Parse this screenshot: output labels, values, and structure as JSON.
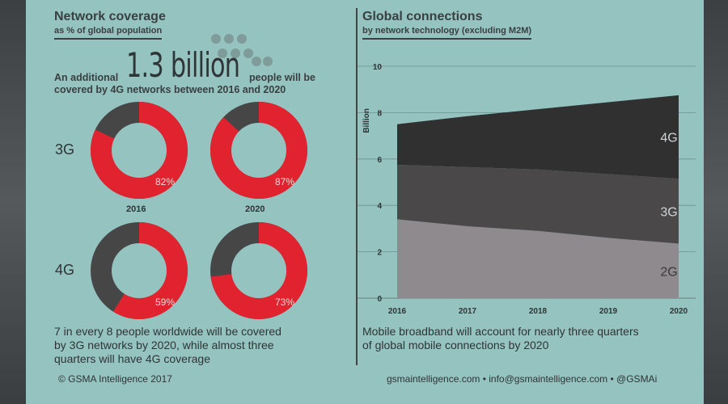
{
  "left": {
    "title": "Network coverage",
    "subtitle": "as % of global population",
    "intro_prefix": "An additional",
    "intro_number": "1.3 billion",
    "intro_suffix": "people will be",
    "intro_line2": "covered by 4G networks between 2016 and 2020",
    "rows": [
      "3G",
      "4G"
    ],
    "years": [
      "2016",
      "2020"
    ],
    "note_line1": "7 in every 8 people worldwide will be covered",
    "note_line2": "by 3G networks by 2020, while almost three",
    "note_line3": "quarters will have 4G coverage",
    "footer": "© GSMA Intelligence 2017"
  },
  "right": {
    "title": "Global connections",
    "subtitle": "by network technology (excluding M2M)",
    "note_line1": "Mobile broadband will account for nearly three quarters",
    "note_line2": "of global mobile connections by 2020",
    "footer": "gsmaintelligence.com • info@gsmaintelligence.com • @GSMAi"
  },
  "colors": {
    "panel": "#94c3c0",
    "red": "#e0232f",
    "dark": "#464647",
    "area_4g": "#303030",
    "area_3g": "#4a4849",
    "area_2g": "#8f8a8d"
  },
  "chart_data": [
    {
      "type": "pie",
      "title": "3G 2016",
      "categories": [
        "covered",
        "not covered"
      ],
      "values": [
        82,
        18
      ],
      "label": "82%"
    },
    {
      "type": "pie",
      "title": "3G 2020",
      "categories": [
        "covered",
        "not covered"
      ],
      "values": [
        87,
        13
      ],
      "label": "87%"
    },
    {
      "type": "pie",
      "title": "4G 2016",
      "categories": [
        "covered",
        "not covered"
      ],
      "values": [
        59,
        41
      ],
      "label": "59%"
    },
    {
      "type": "pie",
      "title": "4G 2020",
      "categories": [
        "covered",
        "not covered"
      ],
      "values": [
        73,
        27
      ],
      "label": "73%"
    },
    {
      "type": "area",
      "title": "Global connections",
      "ylabel": "Billion",
      "x": [
        "2016",
        "2017",
        "2018",
        "2019",
        "2020"
      ],
      "ylim": [
        0,
        10
      ],
      "yticks": [
        0,
        2,
        4,
        6,
        8,
        10
      ],
      "grid": true,
      "stacked": true,
      "series": [
        {
          "name": "2G",
          "values": [
            3.4,
            3.1,
            2.9,
            2.6,
            2.35
          ]
        },
        {
          "name": "3G",
          "values": [
            2.35,
            2.55,
            2.65,
            2.75,
            2.8
          ]
        },
        {
          "name": "4G",
          "values": [
            1.75,
            2.2,
            2.6,
            3.1,
            3.6
          ]
        }
      ]
    }
  ]
}
